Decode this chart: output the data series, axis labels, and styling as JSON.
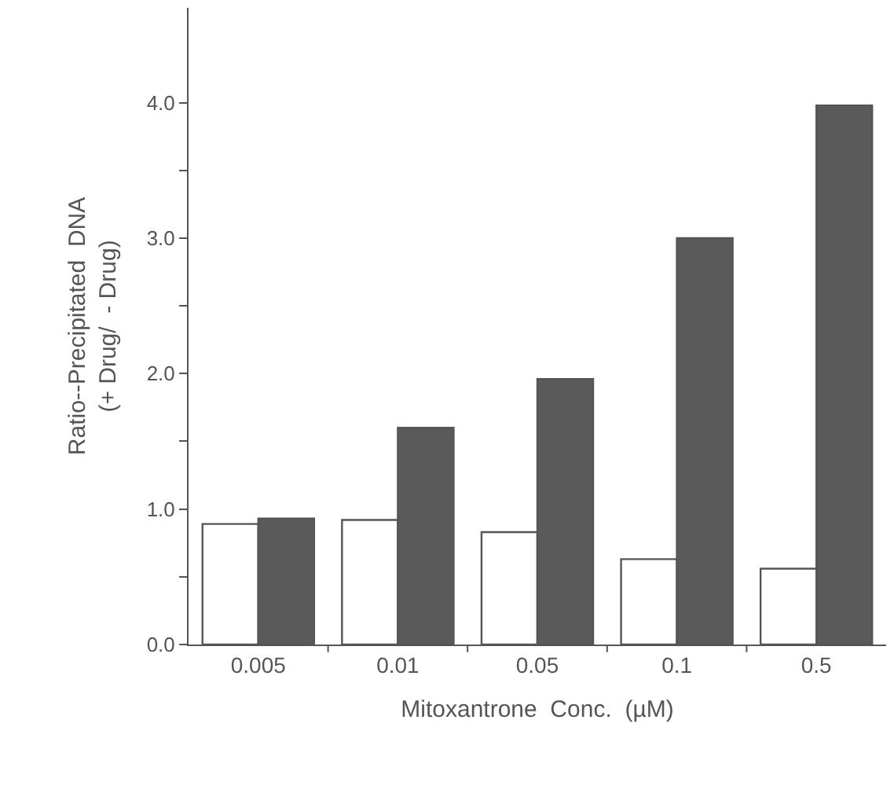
{
  "chart_data": {
    "type": "bar",
    "xlabel": "Mitoxantrone  Conc.  (µM)",
    "ylabel": "Ratio--Precipitated  DNA\n(+ Drug/  - Drug)",
    "categories": [
      "0.005",
      "0.01",
      "0.05",
      "0.1",
      "0.5"
    ],
    "series": [
      {
        "color": "#ffffff",
        "values": [
          0.89,
          0.92,
          0.83,
          0.63,
          0.56
        ]
      },
      {
        "color": "#5a5a5a",
        "values": [
          0.93,
          1.6,
          1.96,
          3.0,
          3.98
        ]
      }
    ],
    "ylim": [
      0,
      4.7
    ],
    "yticks": [
      {
        "value": 0,
        "label": "0.0"
      },
      {
        "value": 0.5,
        "label": null
      },
      {
        "value": 1,
        "label": "1.0"
      },
      {
        "value": 1.5,
        "label": null
      },
      {
        "value": 2,
        "label": "2.0"
      },
      {
        "value": 2.5,
        "label": null
      },
      {
        "value": 3,
        "label": "3.0"
      },
      {
        "value": 3.5,
        "label": null
      },
      {
        "value": 4,
        "label": "4.0"
      }
    ],
    "legend": false
  }
}
